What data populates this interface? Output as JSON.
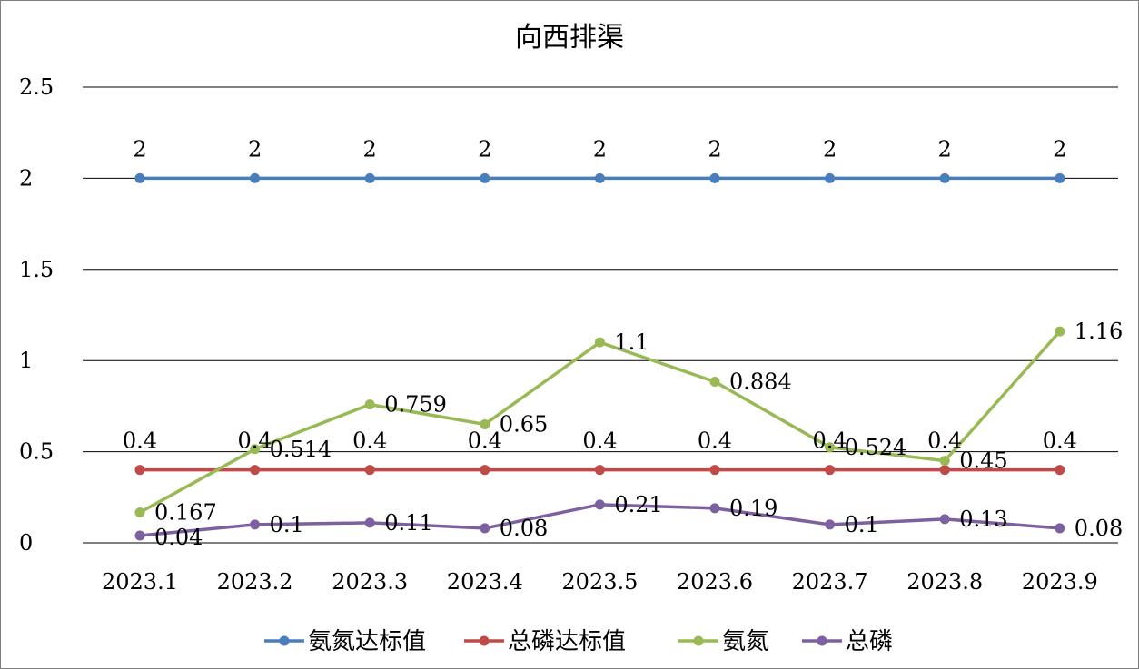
{
  "chart_data": {
    "type": "line",
    "title": "向西排渠",
    "xlabel": "",
    "ylabel": "",
    "categories": [
      "2023.1",
      "2023.2",
      "2023.3",
      "2023.4",
      "2023.5",
      "2023.6",
      "2023.7",
      "2023.8",
      "2023.9"
    ],
    "ylim": [
      0,
      2.5
    ],
    "yticks": [
      "0",
      "0.5",
      "1",
      "1.5",
      "2",
      "2.5"
    ],
    "grid": true,
    "legend_position": "bottom",
    "series": [
      {
        "name": "氨氮达标值",
        "color": "#4a7ebb",
        "values": [
          2,
          2,
          2,
          2,
          2,
          2,
          2,
          2,
          2
        ],
        "labels": [
          "2",
          "2",
          "2",
          "2",
          "2",
          "2",
          "2",
          "2",
          "2"
        ]
      },
      {
        "name": "总磷达标值",
        "color": "#be4b48",
        "values": [
          0.4,
          0.4,
          0.4,
          0.4,
          0.4,
          0.4,
          0.4,
          0.4,
          0.4
        ],
        "labels": [
          "0.4",
          "0.4",
          "0.4",
          "0.4",
          "0.4",
          "0.4",
          "0.4",
          "0.4",
          "0.4"
        ]
      },
      {
        "name": "氨氮",
        "color": "#98b954",
        "values": [
          0.167,
          0.514,
          0.759,
          0.65,
          1.1,
          0.884,
          0.524,
          0.45,
          1.16
        ],
        "labels": [
          "0.167",
          "0.514",
          "0.759",
          "0.65",
          "1.1",
          "0.884",
          "0.524",
          "0.45",
          "1.16"
        ]
      },
      {
        "name": "总磷",
        "color": "#7d60a0",
        "values": [
          0.04,
          0.1,
          0.11,
          0.08,
          0.21,
          0.19,
          0.1,
          0.13,
          0.08
        ],
        "labels": [
          "0.04",
          "0.1",
          "0.11",
          "0.08",
          "0.21",
          "0.19",
          "0.1",
          "0.13",
          "0.08"
        ]
      }
    ]
  }
}
